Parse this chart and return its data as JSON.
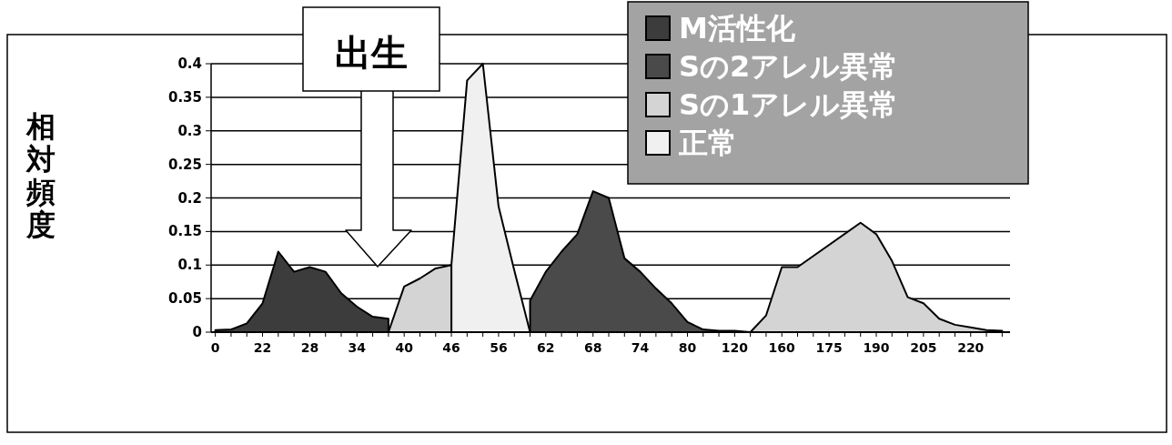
{
  "chart_data": {
    "type": "area",
    "ylabel": "相対頻度",
    "annotations": [
      "出生"
    ],
    "categories": [
      "0",
      null,
      null,
      "22",
      null,
      null,
      "28",
      null,
      null,
      "34",
      null,
      null,
      "40",
      null,
      null,
      "46",
      null,
      null,
      "56",
      null,
      null,
      "62",
      null,
      null,
      "68",
      null,
      null,
      "74",
      null,
      null,
      "80",
      null,
      null,
      "120",
      null,
      null,
      "160",
      null,
      null,
      "175",
      null,
      null,
      "190",
      null,
      null,
      "205",
      null,
      null,
      "220",
      null,
      null
    ],
    "series": [
      {
        "name": "M活性化",
        "color": "#3c3c3c",
        "values": [
          0.003,
          0.004,
          0.013,
          0.043,
          0.12,
          0.09,
          0.097,
          0.09,
          0.058,
          0.038,
          0.023,
          0.02,
          null,
          null,
          null,
          null,
          null,
          null,
          null,
          null,
          null,
          null,
          null,
          null,
          null,
          null,
          null,
          null,
          null,
          null,
          null,
          null,
          null,
          null,
          null,
          null,
          null,
          null,
          null,
          null,
          null,
          null,
          null,
          null,
          null,
          null,
          null,
          null,
          null,
          null,
          null
        ]
      },
      {
        "name": "Sの2アレル異常",
        "color": "#4a4a4a",
        "values": [
          null,
          null,
          null,
          null,
          null,
          null,
          null,
          null,
          null,
          null,
          null,
          null,
          null,
          null,
          null,
          null,
          null,
          null,
          null,
          null,
          0.047,
          0.09,
          0.12,
          0.146,
          0.21,
          0.2,
          0.11,
          0.09,
          0.065,
          0.043,
          0.015,
          0.004,
          0.002,
          0.002,
          0,
          null,
          null,
          null,
          null,
          null,
          null,
          null,
          null,
          null,
          null,
          null,
          null,
          null,
          null,
          null,
          null
        ]
      },
      {
        "name": "Sの1アレル異常",
        "color": "#d4d4d4",
        "values": [
          null,
          null,
          null,
          null,
          null,
          null,
          null,
          null,
          null,
          null,
          null,
          0,
          0.068,
          0.08,
          0.095,
          0.1,
          null,
          null,
          null,
          null,
          null,
          null,
          null,
          null,
          null,
          null,
          null,
          null,
          null,
          null,
          null,
          null,
          null,
          null,
          0,
          0.025,
          0.097,
          0.097,
          null,
          null,
          null,
          0.163,
          0.146,
          0.106,
          0.052,
          0.043,
          0.02,
          0.011,
          0.007,
          0.003,
          0.002
        ]
      },
      {
        "name": "正常",
        "color": "#f0f0f0",
        "values": [
          null,
          null,
          null,
          null,
          null,
          null,
          null,
          null,
          null,
          null,
          null,
          null,
          null,
          null,
          null,
          0.1,
          0.375,
          0.4,
          0.187,
          0.092,
          0,
          null,
          null,
          null,
          null,
          null,
          null,
          null,
          null,
          null,
          null,
          null,
          null,
          null,
          null,
          null,
          null,
          null,
          null,
          null,
          null,
          null,
          null,
          null,
          null,
          null,
          null,
          null,
          null,
          null,
          null
        ]
      }
    ],
    "ylim": [
      0,
      0.4
    ],
    "yticks": [
      0,
      0.05,
      0.1,
      0.15,
      0.2,
      0.25,
      0.3,
      0.35,
      0.4
    ],
    "grid": "y",
    "legend": "top right"
  }
}
